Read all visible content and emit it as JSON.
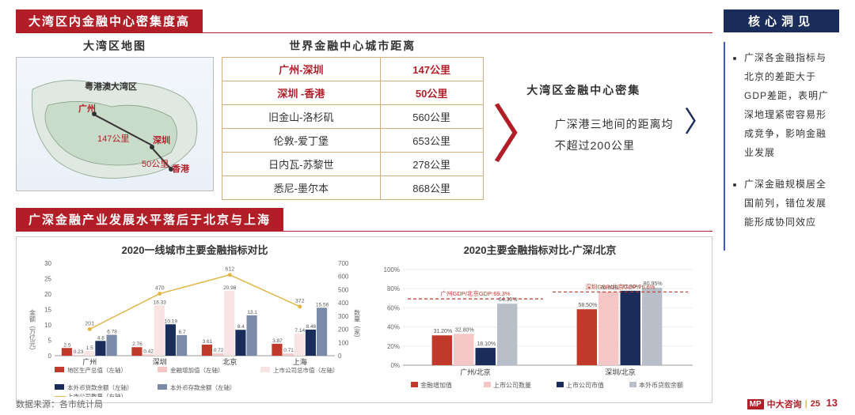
{
  "header1": "大湾区内金融中心密集度高",
  "header2": "广深金融产业发展水平落后于北京与上海",
  "insight_header": "核心洞见",
  "insights": [
    "广深各金融指标与北京的差距大于GDP差距，表明广深地理紧密容易形成竞争，影响金融业发展",
    "广深金融规模居全国前列，错位发展能形成协同效应"
  ],
  "col_titles": {
    "map": "大湾区地图",
    "table": "世界金融中心城市距离",
    "note": "大湾区金融中心密集"
  },
  "map": {
    "region_label": "粤港澳大湾区",
    "cities": [
      "广州",
      "深圳",
      "香港"
    ],
    "distances": [
      "147公里",
      "50公里"
    ]
  },
  "dist_table": {
    "rows": [
      {
        "pair": "广州-深圳",
        "dist": "147公里",
        "hl": true
      },
      {
        "pair": "深圳 -香港",
        "dist": "50公里",
        "hl": true
      },
      {
        "pair": "旧金山-洛杉矶",
        "dist": "560公里",
        "hl": false
      },
      {
        "pair": "伦敦-爱丁堡",
        "dist": "653公里",
        "hl": false
      },
      {
        "pair": "日内瓦-苏黎世",
        "dist": "278公里",
        "hl": false
      },
      {
        "pair": "悉尼-墨尔本",
        "dist": "868公里",
        "hl": false
      }
    ]
  },
  "note_text": "广深港三地间的距离均不超过200公里",
  "chart1": {
    "title": "2020一线城市主要金融指标对比",
    "yleft_label": "金额（万亿元）",
    "yright_label": "数量（家）",
    "yleft_max": 30,
    "yleft_ticks": [
      0,
      5,
      10,
      15,
      20,
      25,
      30
    ],
    "yright_max": 700,
    "yright_ticks": [
      0,
      100,
      200,
      300,
      400,
      500,
      600,
      700
    ],
    "categories": [
      "广州",
      "深圳",
      "北京",
      "上海"
    ],
    "series": [
      {
        "name": "地区生产总值（左轴）",
        "color": "#c0392b",
        "type": "bar",
        "values": [
          2.5,
          2.76,
          3.61,
          3.87
        ]
      },
      {
        "name": "金融增加值（左轴）",
        "color": "#f5c6c6",
        "type": "bar",
        "values": [
          0.23,
          0.42,
          0.72,
          0.71
        ]
      },
      {
        "name": "上市公司总市值（左轴）",
        "color": "#f9e4e4",
        "type": "bar",
        "values": [
          1.5,
          16.33,
          20.98,
          7.14
        ]
      },
      {
        "name": "本外币贷款余额（左轴）",
        "color": "#1a2c59",
        "type": "bar",
        "values": [
          4.8,
          10.19,
          8.4,
          8.46
        ]
      },
      {
        "name": "本外币存款余额（左轴）",
        "color": "#7a8aa8",
        "type": "bar",
        "values": [
          6.78,
          6.7,
          13.1,
          15.56
        ]
      },
      {
        "name": "上市公司数量（右轴）",
        "color": "#e0b64a",
        "type": "line",
        "values": [
          201,
          470,
          612,
          372
        ]
      }
    ]
  },
  "chart2": {
    "title": "2020主要金融指标对比-广深/北京",
    "y_ticks": [
      0,
      20,
      40,
      60,
      80,
      100
    ],
    "categories": [
      "广州/北京",
      "深圳/北京"
    ],
    "ref_lines": [
      {
        "label": "广州GDP/北京GDP:69.3%",
        "value": 69.3,
        "x": 0
      },
      {
        "label": "深圳GDP/北京GDP:76.6%",
        "value": 76.6,
        "x": 1
      }
    ],
    "series": [
      {
        "name": "金融增加值",
        "color": "#c0392b",
        "values": [
          31.2,
          58.5
        ]
      },
      {
        "name": "上市公司数量",
        "color": "#f5c6c6",
        "values": [
          32.8,
          76.8
        ]
      },
      {
        "name": "上市公司市值",
        "color": "#1a2c59",
        "values": [
          18.1,
          77.8
        ]
      },
      {
        "name": "本外币贷款余额",
        "color": "#b8bfc9",
        "values": [
          64.3,
          80.95
        ]
      }
    ]
  },
  "footer": "数据来源：各市统计局",
  "logo": {
    "mp": "MP",
    "cn": "中大咨询",
    "yr": "25"
  },
  "page_num": "13"
}
